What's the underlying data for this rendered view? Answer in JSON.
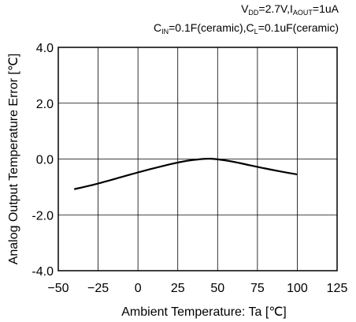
{
  "conditions": {
    "line1": {
      "v": "V",
      "v_sub": "DD",
      "v_val": "=2.7V,",
      "i": "I",
      "i_sub": "AOUT",
      "i_val": "=1uA"
    },
    "line2": {
      "c1": "C",
      "c1_sub": "IN",
      "c1_val": "=0.1F(ceramic),",
      "c2": "C",
      "c2_sub": "L",
      "c2_val": "=0.1uF(ceramic)"
    }
  },
  "chart_data": {
    "type": "line",
    "xlabel": "Ambient Temperature: Ta [℃]",
    "ylabel": "Analog Output Temperature Error [℃]",
    "xlim": [
      -50,
      125
    ],
    "ylim": [
      -4.0,
      4.0
    ],
    "x_ticks": [
      -50,
      -25,
      0,
      25,
      50,
      75,
      100,
      125
    ],
    "x_tick_labels": [
      "−50",
      "−25",
      "0",
      "25",
      "50",
      "75",
      "100",
      "125"
    ],
    "y_ticks": [
      4.0,
      2.0,
      0.0,
      -2.0,
      -4.0
    ],
    "y_tick_labels": [
      "4.0",
      "2.0",
      "0.0",
      "-2.0",
      "-4.0"
    ],
    "grid": true,
    "series": [
      {
        "x": [
          -40,
          -30,
          -20,
          -10,
          0,
          10,
          20,
          30,
          40,
          45,
          50,
          60,
          70,
          80,
          90,
          100
        ],
        "y": [
          -1.08,
          -0.95,
          -0.8,
          -0.64,
          -0.48,
          -0.33,
          -0.19,
          -0.07,
          0.0,
          0.01,
          -0.01,
          -0.1,
          -0.22,
          -0.34,
          -0.45,
          -0.55
        ]
      }
    ]
  }
}
